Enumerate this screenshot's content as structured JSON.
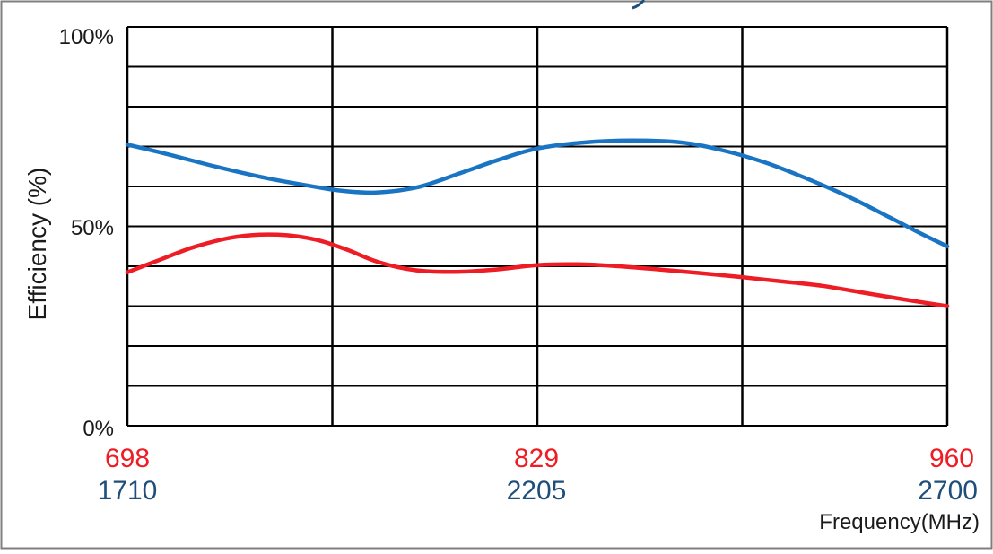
{
  "colors": {
    "low_band": "#ee1c24",
    "high_band": "#1a74c4",
    "high_band_tick": "#1e4f7a",
    "grid": "#000000",
    "text": "#1a1a1a"
  },
  "chart_data": {
    "type": "line",
    "title": "",
    "ylabel": "Efficiency (%)",
    "xlabel": "Frequency(MHz)",
    "ylim": [
      0,
      100
    ],
    "y_ticks": [
      "0%",
      "50%",
      "100%"
    ],
    "grid": true,
    "x_ticks_low": [
      "698",
      "829",
      "960"
    ],
    "x_ticks_high": [
      "1710",
      "2205",
      "2700"
    ],
    "series": [
      {
        "key": "low_band",
        "x": [
          698,
          708,
          720,
          733,
          746,
          758,
          768,
          778,
          790,
          803,
          816,
          829,
          842,
          855,
          868,
          881,
          894,
          907,
          920,
          933,
          946,
          960
        ],
        "y": [
          38.5,
          41.5,
          45.0,
          47.4,
          47.9,
          46.7,
          44.2,
          41.1,
          39.0,
          38.6,
          39.2,
          40.3,
          40.5,
          40.0,
          39.2,
          38.3,
          37.3,
          36.2,
          35.1,
          33.4,
          31.7,
          30.0
        ]
      },
      {
        "key": "high_band",
        "x": [
          1710,
          1760,
          1820,
          1880,
          1940,
          1970,
          2010,
          2060,
          2110,
          2160,
          2205,
          2260,
          2320,
          2380,
          2430,
          2480,
          2530,
          2580,
          2630,
          2670,
          2700
        ],
        "y": [
          70.5,
          68.0,
          64.8,
          62.0,
          59.8,
          58.9,
          58.5,
          59.8,
          63.2,
          66.8,
          69.5,
          71.0,
          71.5,
          71.0,
          69.0,
          66.0,
          62.0,
          57.5,
          52.3,
          48.0,
          45.0
        ]
      }
    ]
  }
}
